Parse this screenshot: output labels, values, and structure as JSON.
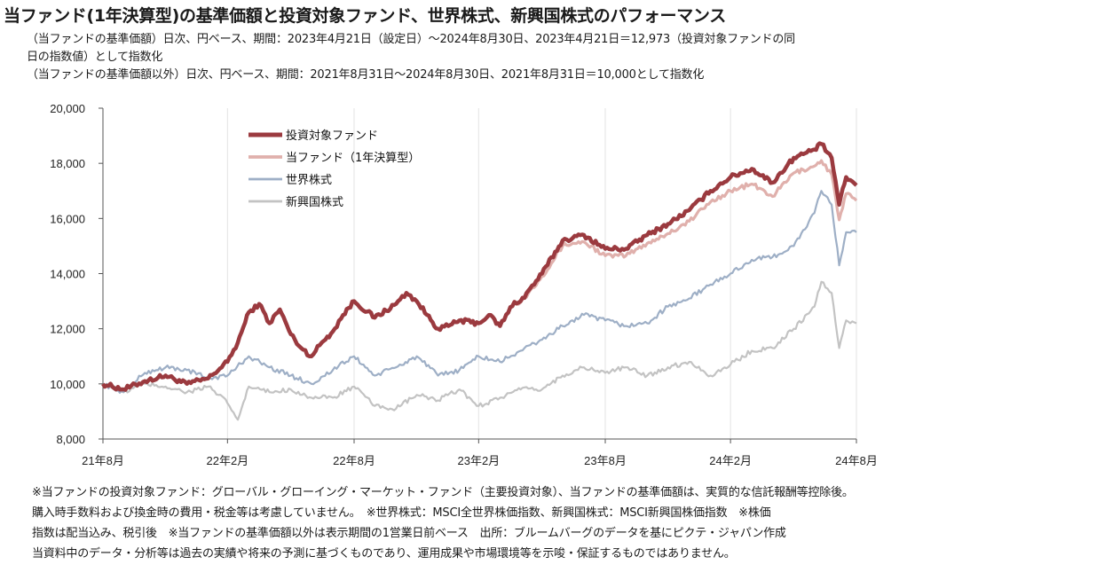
{
  "header": {
    "title": "当ファンド(1年決算型)の基準価額と投資対象ファンド、世界株式、新興国株式のパフォーマンス",
    "subtitle_1a": "（当ファンドの基準価額）日次、円ベース、期間：2023年4月21日（設定日）～2024年8月30日、2023年4月21日＝12,973（投資対象ファンドの同",
    "subtitle_1b": "日の指数値）として指数化",
    "subtitle_2": "（当ファンドの基準価額以外）日次、円ベース、期間：2021年8月31日～2024年8月30日、2021年8月31日＝10,000として指数化"
  },
  "notes": {
    "line1": "※当ファンドの投資対象ファンド：グローバル・グローイング・マーケット・ファンド（主要投資対象）、当ファンドの基準価額は、実質的な信託報酬等控除後。",
    "line2": "購入時手数料および換金時の費用・税金等は考慮していません。　※世界株式：MSCI全世界株価指数、新興国株式：MSCI新興国株価指数　※株価",
    "line3": "指数は配当込み、税引後　※当ファンドの基準価額以外は表示期間の1営業日前ベース　出所：ブルームバーグのデータを基にピクテ・ジャパン作成",
    "line4": "当資料中のデータ・分析等は過去の実績や将来の予測に基づくものであり、運用成果や市場環境等を示唆・保証するものではありません。"
  },
  "chart_data": {
    "type": "line",
    "ylim": [
      8000,
      20000
    ],
    "y_ticks": [
      8000,
      10000,
      12000,
      14000,
      16000,
      18000,
      20000
    ],
    "y_tick_labels": [
      "8,000",
      "10,000",
      "12,000",
      "14,000",
      "16,000",
      "18,000",
      "20,000"
    ],
    "x_range": [
      "2021-08-31",
      "2024-08-30"
    ],
    "x_ticks": [
      "2021-08-31",
      "2022-02-28",
      "2022-08-31",
      "2023-02-28",
      "2023-08-31",
      "2024-02-29",
      "2024-08-30"
    ],
    "x_tick_labels": [
      "21年8月",
      "22年2月",
      "22年8月",
      "23年2月",
      "23年8月",
      "24年2月",
      "24年8月"
    ],
    "grid": "vertical",
    "legend_position": "top-left",
    "series": [
      {
        "name": "投資対象ファンド",
        "color": "#9b3a3f",
        "x": [
          "2021-08-31",
          "2021-09-30",
          "2021-10-31",
          "2021-11-30",
          "2021-12-31",
          "2022-01-31",
          "2022-02-28",
          "2022-03-15",
          "2022-03-31",
          "2022-04-15",
          "2022-04-30",
          "2022-05-15",
          "2022-05-31",
          "2022-06-15",
          "2022-06-30",
          "2022-07-15",
          "2022-07-31",
          "2022-08-15",
          "2022-08-31",
          "2022-09-30",
          "2022-10-31",
          "2022-11-15",
          "2022-11-30",
          "2022-12-15",
          "2022-12-31",
          "2023-01-15",
          "2023-01-31",
          "2023-02-28",
          "2023-03-15",
          "2023-03-31",
          "2023-04-21",
          "2023-04-30",
          "2023-05-31",
          "2023-06-30",
          "2023-07-15",
          "2023-07-31",
          "2023-08-31",
          "2023-09-30",
          "2023-10-31",
          "2023-11-30",
          "2023-12-31",
          "2024-01-31",
          "2024-02-29",
          "2024-03-31",
          "2024-04-30",
          "2024-05-31",
          "2024-06-30",
          "2024-07-10",
          "2024-07-25",
          "2024-08-05",
          "2024-08-15",
          "2024-08-30"
        ],
        "values": [
          10000,
          9800,
          10100,
          10300,
          10000,
          10200,
          10800,
          11500,
          12600,
          12900,
          12200,
          12700,
          11800,
          11300,
          11000,
          11500,
          11900,
          12500,
          13000,
          12400,
          12900,
          13300,
          13000,
          12500,
          12000,
          12100,
          12300,
          12200,
          12500,
          12100,
          12973,
          13000,
          14000,
          15200,
          15300,
          15400,
          14900,
          14900,
          15400,
          15800,
          16300,
          17000,
          17500,
          17800,
          17300,
          18200,
          18500,
          18700,
          18200,
          16500,
          17500,
          17200
        ]
      },
      {
        "name": "当ファンド（1年決算型）",
        "color": "#e0b0ac",
        "x": [
          "2023-04-21",
          "2023-04-30",
          "2023-05-31",
          "2023-06-30",
          "2023-07-15",
          "2023-07-31",
          "2023-08-31",
          "2023-09-30",
          "2023-10-31",
          "2023-11-30",
          "2023-12-31",
          "2024-01-31",
          "2024-02-29",
          "2024-03-31",
          "2024-04-30",
          "2024-05-31",
          "2024-06-30",
          "2024-07-10",
          "2024-07-25",
          "2024-08-05",
          "2024-08-15",
          "2024-08-30"
        ],
        "values": [
          12973,
          12950,
          13900,
          15000,
          15100,
          15150,
          14650,
          14650,
          15100,
          15450,
          15900,
          16600,
          17000,
          17250,
          16800,
          17650,
          17900,
          18100,
          17600,
          15950,
          16900,
          16650
        ]
      },
      {
        "name": "世界株式",
        "color": "#9eafc6",
        "x": [
          "2021-08-31",
          "2021-09-30",
          "2021-10-31",
          "2021-11-30",
          "2021-12-31",
          "2022-01-31",
          "2022-02-28",
          "2022-03-31",
          "2022-04-30",
          "2022-05-31",
          "2022-06-30",
          "2022-07-31",
          "2022-08-31",
          "2022-09-30",
          "2022-10-31",
          "2022-11-30",
          "2022-12-31",
          "2023-01-31",
          "2023-02-28",
          "2023-03-31",
          "2023-04-30",
          "2023-05-31",
          "2023-06-30",
          "2023-07-31",
          "2023-08-31",
          "2023-09-30",
          "2023-10-31",
          "2023-11-30",
          "2023-12-31",
          "2024-01-31",
          "2024-02-29",
          "2024-03-31",
          "2024-04-30",
          "2024-05-31",
          "2024-06-30",
          "2024-07-10",
          "2024-07-25",
          "2024-08-05",
          "2024-08-15",
          "2024-08-30"
        ],
        "values": [
          10000,
          9700,
          10400,
          10600,
          10500,
          10200,
          10300,
          11000,
          10600,
          10300,
          10000,
          10500,
          11000,
          10300,
          10600,
          11000,
          10300,
          10500,
          11000,
          10800,
          11200,
          11600,
          12100,
          12500,
          12300,
          12100,
          12200,
          12800,
          13100,
          13600,
          14000,
          14500,
          14600,
          15000,
          16200,
          17000,
          16500,
          14300,
          15500,
          15500
        ]
      },
      {
        "name": "新興国株式",
        "color": "#c3c3c3",
        "x": [
          "2021-08-31",
          "2021-09-30",
          "2021-10-31",
          "2021-11-30",
          "2021-12-31",
          "2022-01-31",
          "2022-02-15",
          "2022-02-28",
          "2022-03-15",
          "2022-03-31",
          "2022-04-30",
          "2022-05-31",
          "2022-06-30",
          "2022-07-31",
          "2022-08-31",
          "2022-09-30",
          "2022-10-31",
          "2022-11-30",
          "2022-12-31",
          "2023-01-31",
          "2023-02-28",
          "2023-03-31",
          "2023-04-30",
          "2023-05-31",
          "2023-06-30",
          "2023-07-31",
          "2023-08-31",
          "2023-09-30",
          "2023-10-31",
          "2023-11-30",
          "2023-12-31",
          "2024-01-31",
          "2024-02-29",
          "2024-03-31",
          "2024-04-30",
          "2024-05-31",
          "2024-06-30",
          "2024-07-10",
          "2024-07-25",
          "2024-08-05",
          "2024-08-15",
          "2024-08-30"
        ],
        "values": [
          10000,
          9700,
          10000,
          9900,
          9700,
          9900,
          9600,
          9300,
          8700,
          9900,
          9700,
          9800,
          9500,
          9500,
          9900,
          9200,
          9100,
          9600,
          9400,
          9800,
          9200,
          9500,
          9800,
          9800,
          10300,
          10600,
          10400,
          10600,
          10300,
          10600,
          10800,
          10300,
          10700,
          11200,
          11300,
          12000,
          12800,
          13700,
          13300,
          11300,
          12300,
          12200
        ]
      }
    ]
  }
}
